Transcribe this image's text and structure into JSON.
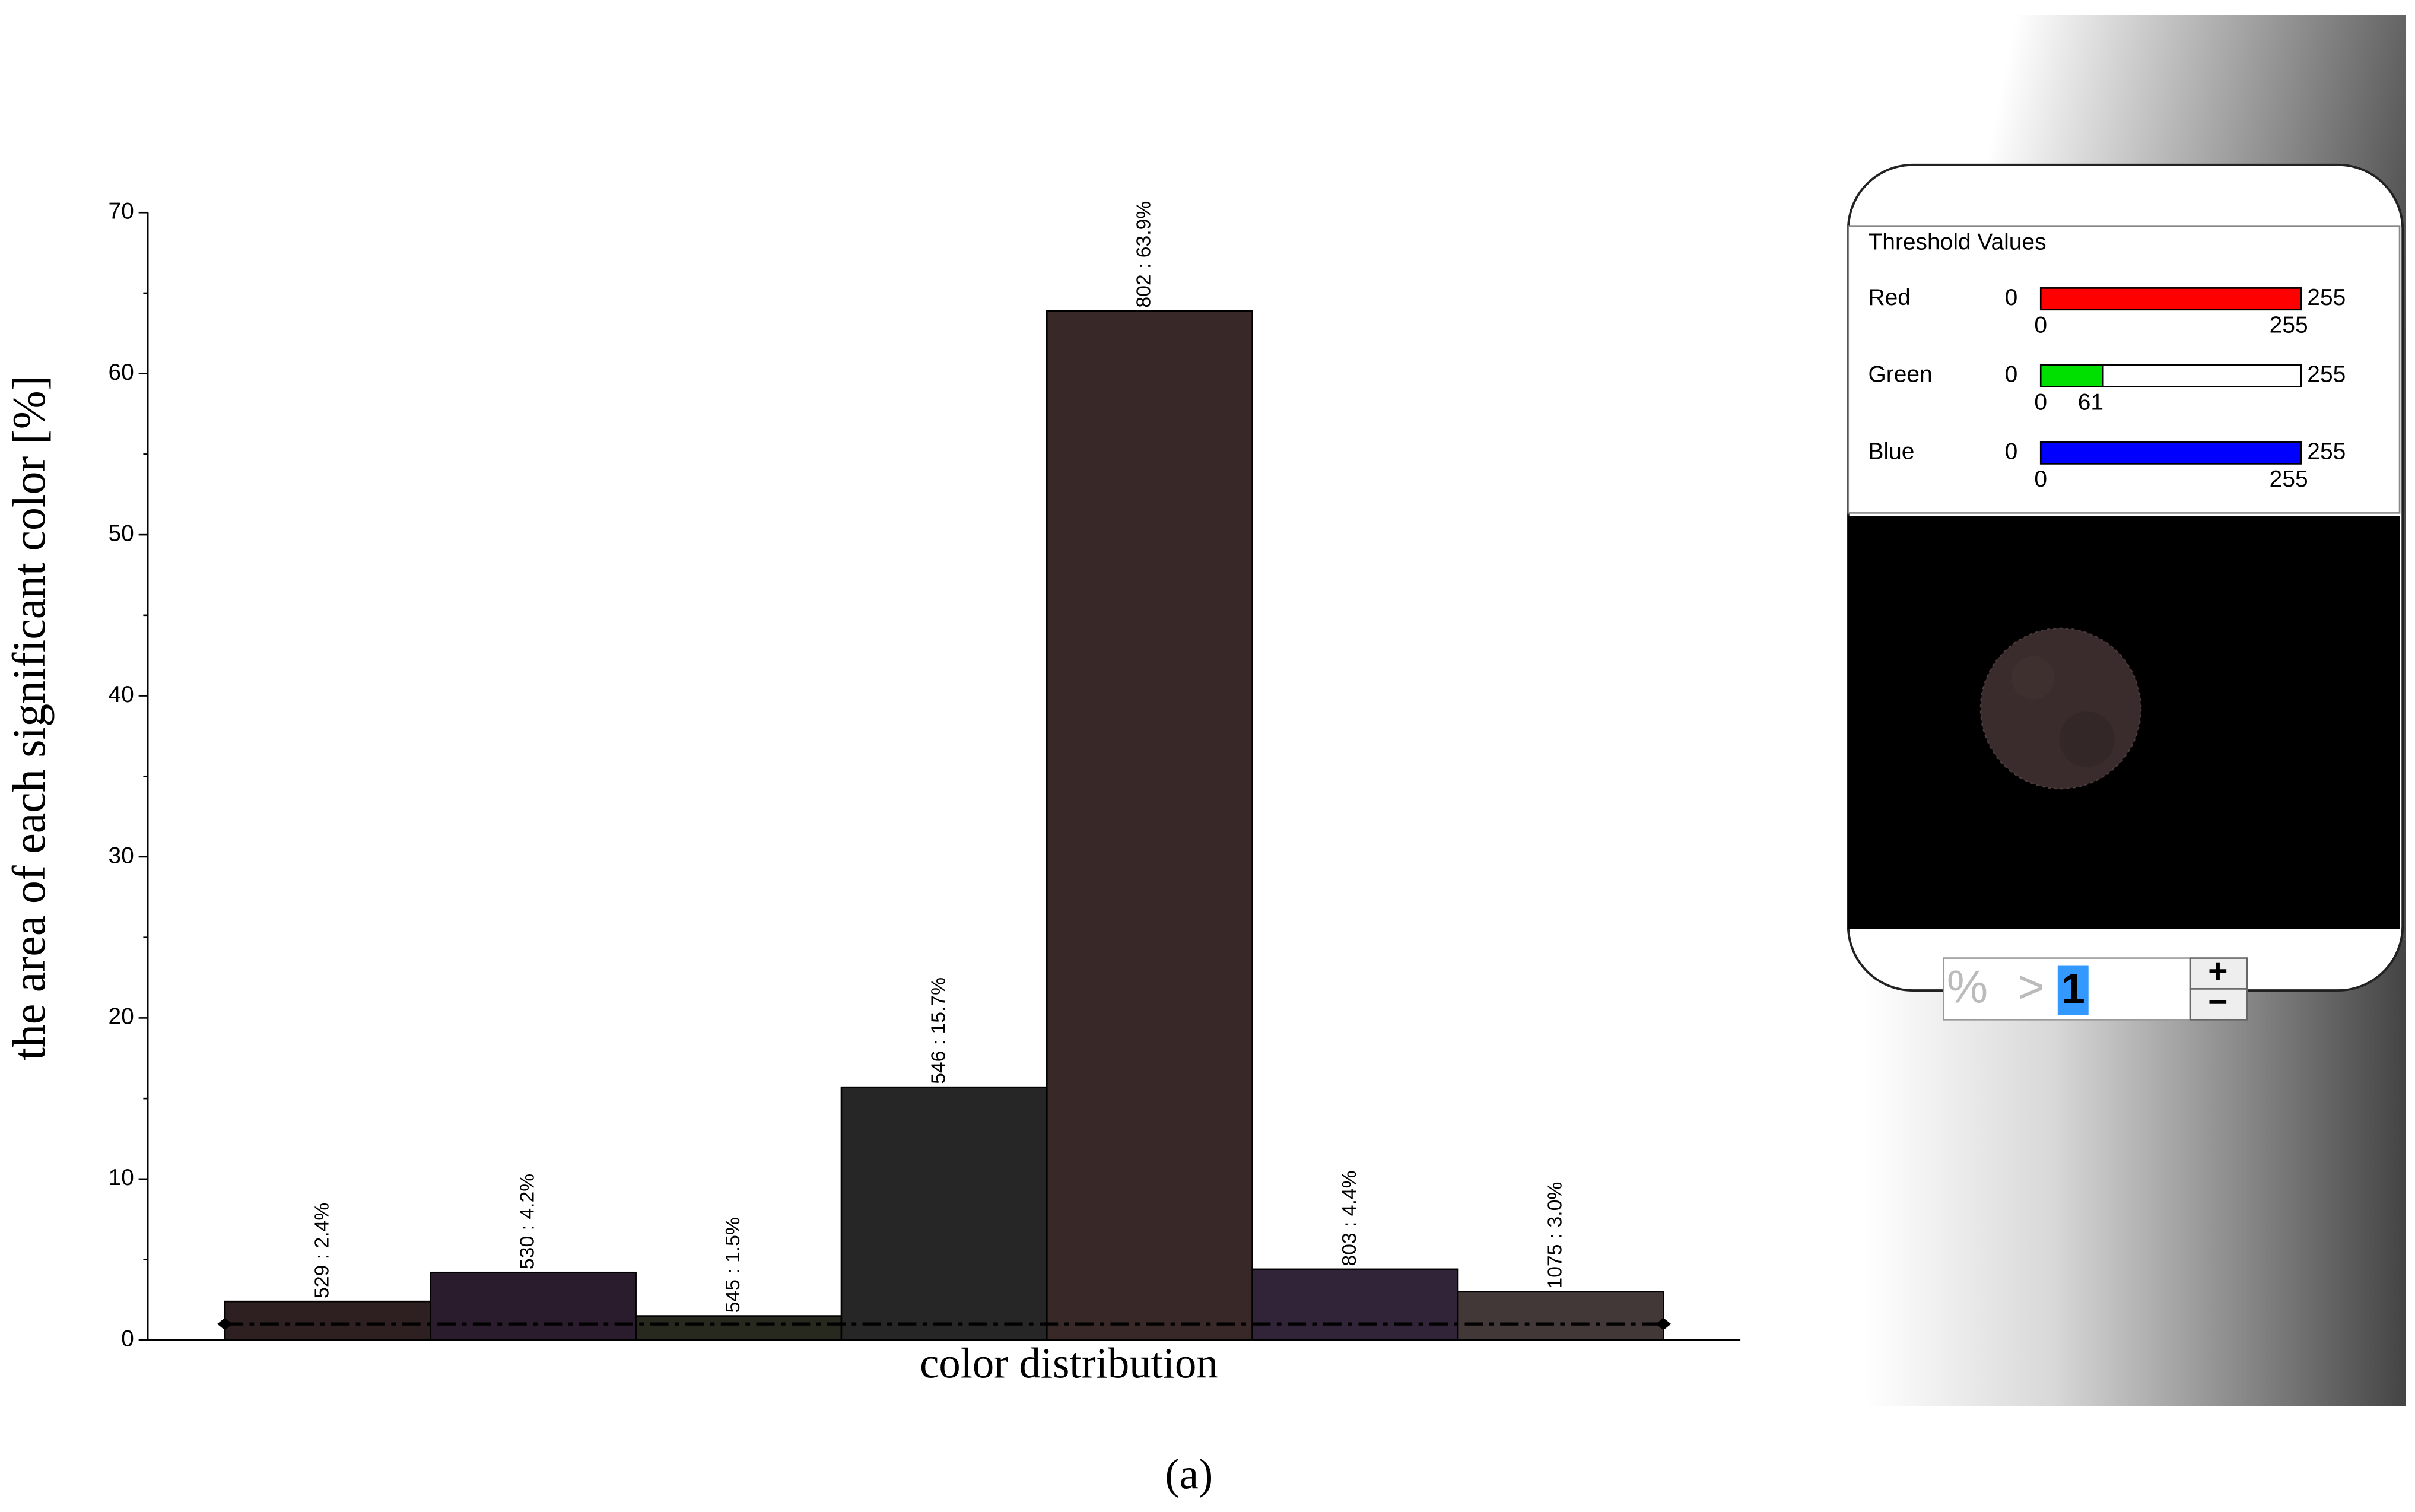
{
  "chart_data": {
    "type": "bar",
    "ylabel": "the area of each significant color [%]",
    "xlabel": "color distribution",
    "categories": [
      null,
      null,
      null,
      null,
      null,
      null,
      null
    ],
    "values": [
      2.4,
      4.2,
      1.5,
      15.7,
      63.9,
      4.4,
      3.0
    ],
    "value_labels": [
      "529 : 2.4%",
      "530 : 4.2%",
      "545 : 1.5%",
      "546 : 15.7%",
      "802 : 63.9%",
      "803 : 4.4%",
      "1075 : 3.0%"
    ],
    "colors": [
      "#2e2020",
      "#2a1c2c",
      "#27291f",
      "#262626",
      "#382828",
      "#322438",
      "#433838"
    ],
    "ylim": [
      0,
      70
    ],
    "yticks": [
      0,
      10,
      20,
      30,
      40,
      50,
      60,
      70
    ],
    "yminor_ticks": [
      5,
      15,
      25,
      35,
      45,
      55,
      65
    ],
    "threshold": 1
  },
  "caption": "(a)",
  "panel": {
    "title": "Threshold Values",
    "channels": [
      {
        "name": "Red",
        "min": 0,
        "max": 255,
        "low": 0,
        "high": 255,
        "color": "#ff0000"
      },
      {
        "name": "Green",
        "min": 0,
        "max": 255,
        "low": 0,
        "high": 61,
        "color": "#00e000"
      },
      {
        "name": "Blue",
        "min": 0,
        "max": 255,
        "low": 0,
        "high": 255,
        "color": "#0000ff"
      }
    ],
    "filter": {
      "unit": "%",
      "operator": ">"
    },
    "buttons": [
      "+",
      "−"
    ]
  }
}
